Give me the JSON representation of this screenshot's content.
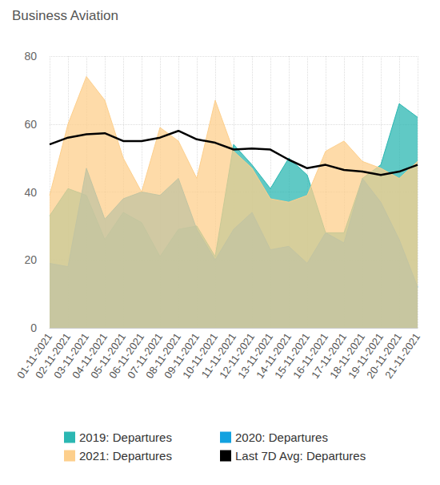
{
  "chart_data": {
    "type": "area",
    "title": "Business Aviation",
    "categories": [
      "01-11-2021",
      "02-11-2021",
      "03-11-2021",
      "04-11-2021",
      "05-11-2021",
      "06-11-2021",
      "07-11-2021",
      "08-11-2021",
      "09-11-2021",
      "10-11-2021",
      "11-11-2021",
      "12-11-2021",
      "13-11-2021",
      "14-11-2021",
      "15-11-2021",
      "16-11-2021",
      "17-11-2021",
      "18-11-2021",
      "19-11-2021",
      "20-11-2021",
      "21-11-2021"
    ],
    "series": [
      {
        "name": "2019: Departures",
        "type": "area",
        "color": "#2bb7b2",
        "values": [
          33,
          41,
          39,
          26,
          34,
          31,
          21,
          29,
          30,
          21,
          54,
          48,
          41,
          50,
          45,
          28,
          28,
          44,
          48,
          66,
          62
        ]
      },
      {
        "name": "2020: Departures",
        "type": "area",
        "color": "#12a2e0",
        "values": [
          19,
          18,
          47,
          32,
          38,
          40,
          39,
          44,
          29,
          20,
          29,
          34,
          23,
          24,
          19,
          28,
          25,
          44,
          37,
          26,
          12
        ]
      },
      {
        "name": "2021: Departures",
        "type": "area",
        "color": "#fdcf8c",
        "values": [
          39,
          60,
          74,
          67,
          50,
          40,
          59,
          55,
          44,
          67,
          52,
          47,
          38,
          37,
          39,
          52,
          55,
          49,
          47,
          44,
          49
        ]
      },
      {
        "name": "Last 7D Avg: Departures",
        "type": "line",
        "color": "#000000",
        "values": [
          54,
          56,
          57,
          57.3,
          55,
          55,
          56,
          58,
          55.5,
          54.5,
          52.5,
          52.8,
          52.5,
          49.5,
          47,
          48,
          46.5,
          46,
          45,
          46,
          48
        ]
      }
    ],
    "ylim": [
      0,
      80
    ],
    "yticks": [
      0,
      20,
      40,
      60,
      80
    ],
    "grid": true
  }
}
